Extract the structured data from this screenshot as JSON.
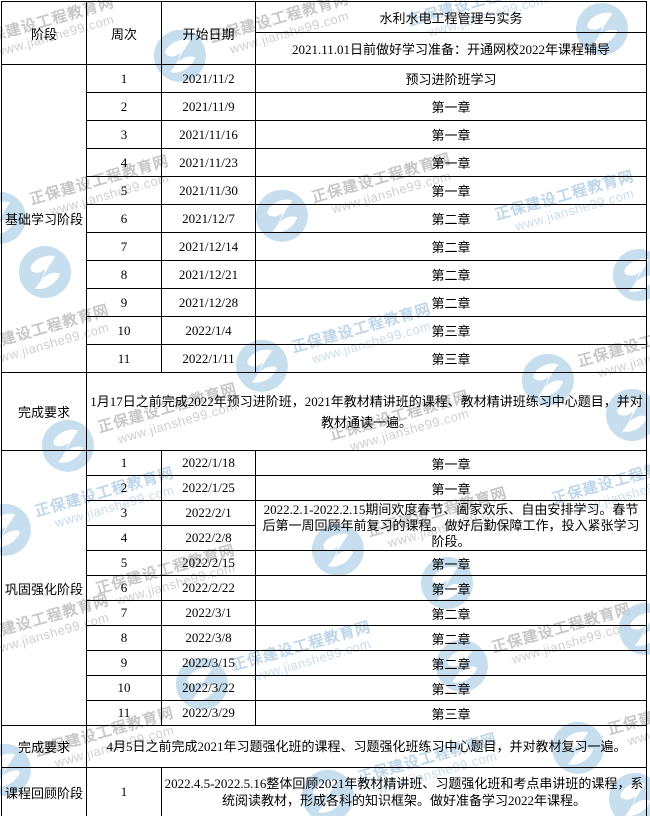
{
  "header": {
    "col_stage": "阶段",
    "col_week": "周次",
    "col_date": "开始日期",
    "subject_title": "水利水电工程管理与实务",
    "prep_note": "2021.11.01日前做好学习准备：开通网校2022年课程辅导"
  },
  "sections": [
    {
      "stage": "基础学习阶段",
      "rows": [
        {
          "week": "1",
          "date": "2021/11/2",
          "content": "预习进阶班学习"
        },
        {
          "week": "2",
          "date": "2021/11/9",
          "content": "第一章"
        },
        {
          "week": "3",
          "date": "2021/11/16",
          "content": "第一章"
        },
        {
          "week": "4",
          "date": "2021/11/23",
          "content": "第一章"
        },
        {
          "week": "5",
          "date": "2021/11/30",
          "content": "第一章"
        },
        {
          "week": "6",
          "date": "2021/12/7",
          "content": "第二章"
        },
        {
          "week": "7",
          "date": "2021/12/14",
          "content": "第二章"
        },
        {
          "week": "8",
          "date": "2021/12/21",
          "content": "第二章"
        },
        {
          "week": "9",
          "date": "2021/12/28",
          "content": "第二章"
        },
        {
          "week": "10",
          "date": "2022/1/4",
          "content": "第三章"
        },
        {
          "week": "11",
          "date": "2022/1/11",
          "content": "第三章"
        }
      ],
      "requirement_label": "完成要求",
      "requirement": "1月17日之前完成2022年预习进阶班，2021年教材精讲班的课程、教材精讲班练习中心题目，并对教材通读一遍。"
    },
    {
      "stage": "巩固强化阶段",
      "rows": [
        {
          "week": "1",
          "date": "2022/1/18",
          "content": "第一章"
        },
        {
          "week": "2",
          "date": "2022/1/25",
          "content": "第一章"
        },
        {
          "week": "3",
          "date": "2022/2/1",
          "highlight": true,
          "merge": "start",
          "content": "2022.2.1-2022.2.15期间欢度春节、阖家欢乐、自由安排学习。春节后第一周回顾年前复习的课程。做好后勤保障工作，投入紧张学习阶段。"
        },
        {
          "week": "4",
          "date": "2022/2/8",
          "highlight": true,
          "merge": "cont"
        },
        {
          "week": "5",
          "date": "2022/2/15",
          "content": "第一章"
        },
        {
          "week": "6",
          "date": "2022/2/22",
          "content": "第一章"
        },
        {
          "week": "7",
          "date": "2022/3/1",
          "content": "第二章"
        },
        {
          "week": "8",
          "date": "2022/3/8",
          "content": "第二章"
        },
        {
          "week": "9",
          "date": "2022/3/15",
          "content": "第二章"
        },
        {
          "week": "10",
          "date": "2022/3/22",
          "content": "第二章"
        },
        {
          "week": "11",
          "date": "2022/3/29",
          "content": "第三章"
        }
      ],
      "requirement_label": "完成要求",
      "requirement": "4月5日之前完成2021年习题强化班的课程、习题强化班练习中心题目，并对教材复习一遍。"
    }
  ],
  "review": {
    "stage": "课程回顾阶段",
    "week": "1",
    "content": "2022.4.5-2022.5.16整体回顾2021年教材精讲班、习题强化班和考点串讲班的课程，系统阅读教材，形成各科的知识框架。做好准备学习2022年课程。"
  },
  "watermark": {
    "brand": "正保建设工程教育网",
    "url": "www.jianshe99.com",
    "logo_color": "#b9d7ea"
  },
  "colors": {
    "highlight": "#ffff00",
    "border": "#000000",
    "background": "#ffffff"
  }
}
